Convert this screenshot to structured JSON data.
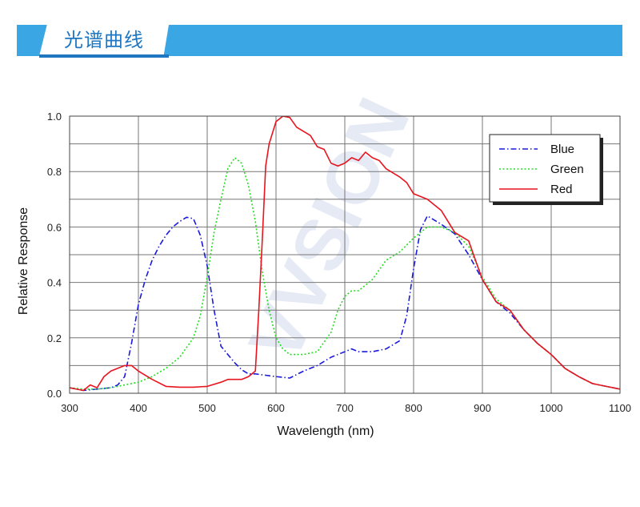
{
  "header": {
    "title": "光谱曲线"
  },
  "watermark": "VVSION",
  "chart_data": {
    "type": "line",
    "xlabel": "Wavelength (nm)",
    "ylabel": "Relative Response",
    "xlim": [
      300,
      1100
    ],
    "ylim": [
      0,
      1.0
    ],
    "xticks": [
      300,
      400,
      500,
      600,
      700,
      800,
      900,
      1000,
      1100
    ],
    "yticks": [
      0.0,
      0.2,
      0.4,
      0.6,
      0.8,
      1.0
    ],
    "xtick_labels": [
      "300",
      "400",
      "500",
      "600",
      "700",
      "800",
      "900",
      "1000",
      "1100"
    ],
    "ytick_labels": [
      "0.0",
      "0.2",
      "0.4",
      "0.6",
      "0.8",
      "1.0"
    ],
    "grid": true,
    "legend_position": "top-right",
    "series": [
      {
        "name": "Blue",
        "color": "#1a1adc",
        "style": "dashdot",
        "x": [
          300,
          320,
          340,
          360,
          370,
          380,
          390,
          400,
          410,
          420,
          430,
          440,
          450,
          460,
          470,
          480,
          490,
          500,
          510,
          520,
          530,
          540,
          550,
          560,
          570,
          600,
          620,
          640,
          660,
          680,
          700,
          710,
          720,
          740,
          760,
          780,
          790,
          800,
          810,
          820,
          840,
          860,
          880,
          900,
          920,
          940,
          960,
          980,
          1000,
          1020,
          1040,
          1060,
          1080,
          1100
        ],
        "y": [
          0.02,
          0.01,
          0.015,
          0.02,
          0.03,
          0.06,
          0.18,
          0.32,
          0.41,
          0.48,
          0.53,
          0.57,
          0.6,
          0.62,
          0.635,
          0.63,
          0.57,
          0.46,
          0.3,
          0.17,
          0.14,
          0.11,
          0.085,
          0.07,
          0.07,
          0.06,
          0.055,
          0.08,
          0.1,
          0.13,
          0.15,
          0.16,
          0.15,
          0.15,
          0.16,
          0.19,
          0.28,
          0.45,
          0.59,
          0.64,
          0.61,
          0.575,
          0.5,
          0.41,
          0.33,
          0.29,
          0.23,
          0.18,
          0.14,
          0.09,
          0.06,
          0.035,
          0.025,
          0.015
        ]
      },
      {
        "name": "Green",
        "color": "#22dd22",
        "style": "dotted",
        "x": [
          300,
          320,
          340,
          360,
          380,
          400,
          420,
          440,
          460,
          480,
          490,
          500,
          510,
          520,
          530,
          540,
          550,
          560,
          570,
          580,
          590,
          600,
          610,
          620,
          640,
          660,
          680,
          690,
          700,
          710,
          720,
          740,
          760,
          780,
          800,
          820,
          840,
          860,
          880,
          900,
          920,
          940,
          960,
          980,
          1000,
          1020,
          1040,
          1060,
          1080,
          1100
        ],
        "y": [
          0.02,
          0.015,
          0.015,
          0.02,
          0.03,
          0.04,
          0.06,
          0.09,
          0.13,
          0.2,
          0.28,
          0.42,
          0.58,
          0.7,
          0.81,
          0.85,
          0.83,
          0.75,
          0.62,
          0.44,
          0.3,
          0.2,
          0.16,
          0.14,
          0.14,
          0.15,
          0.22,
          0.3,
          0.35,
          0.37,
          0.37,
          0.41,
          0.48,
          0.51,
          0.56,
          0.6,
          0.6,
          0.58,
          0.53,
          0.42,
          0.34,
          0.3,
          0.23,
          0.18,
          0.14,
          0.09,
          0.06,
          0.035,
          0.025,
          0.015
        ]
      },
      {
        "name": "Red",
        "color": "#e8141e",
        "style": "solid",
        "x": [
          300,
          320,
          330,
          340,
          350,
          360,
          380,
          390,
          400,
          420,
          440,
          460,
          480,
          500,
          520,
          530,
          540,
          550,
          560,
          570,
          575,
          580,
          585,
          590,
          600,
          610,
          620,
          630,
          650,
          660,
          670,
          680,
          690,
          700,
          710,
          720,
          730,
          740,
          750,
          760,
          780,
          790,
          800,
          820,
          840,
          860,
          880,
          900,
          920,
          940,
          960,
          980,
          1000,
          1020,
          1040,
          1060,
          1080,
          1100
        ],
        "y": [
          0.02,
          0.01,
          0.03,
          0.02,
          0.06,
          0.08,
          0.1,
          0.1,
          0.08,
          0.05,
          0.025,
          0.022,
          0.022,
          0.025,
          0.04,
          0.05,
          0.05,
          0.05,
          0.06,
          0.08,
          0.3,
          0.55,
          0.82,
          0.9,
          0.98,
          1.0,
          0.995,
          0.96,
          0.93,
          0.89,
          0.88,
          0.83,
          0.82,
          0.83,
          0.85,
          0.84,
          0.87,
          0.85,
          0.84,
          0.81,
          0.78,
          0.76,
          0.72,
          0.7,
          0.66,
          0.58,
          0.55,
          0.41,
          0.33,
          0.3,
          0.23,
          0.18,
          0.14,
          0.09,
          0.06,
          0.035,
          0.025,
          0.015
        ]
      }
    ]
  }
}
